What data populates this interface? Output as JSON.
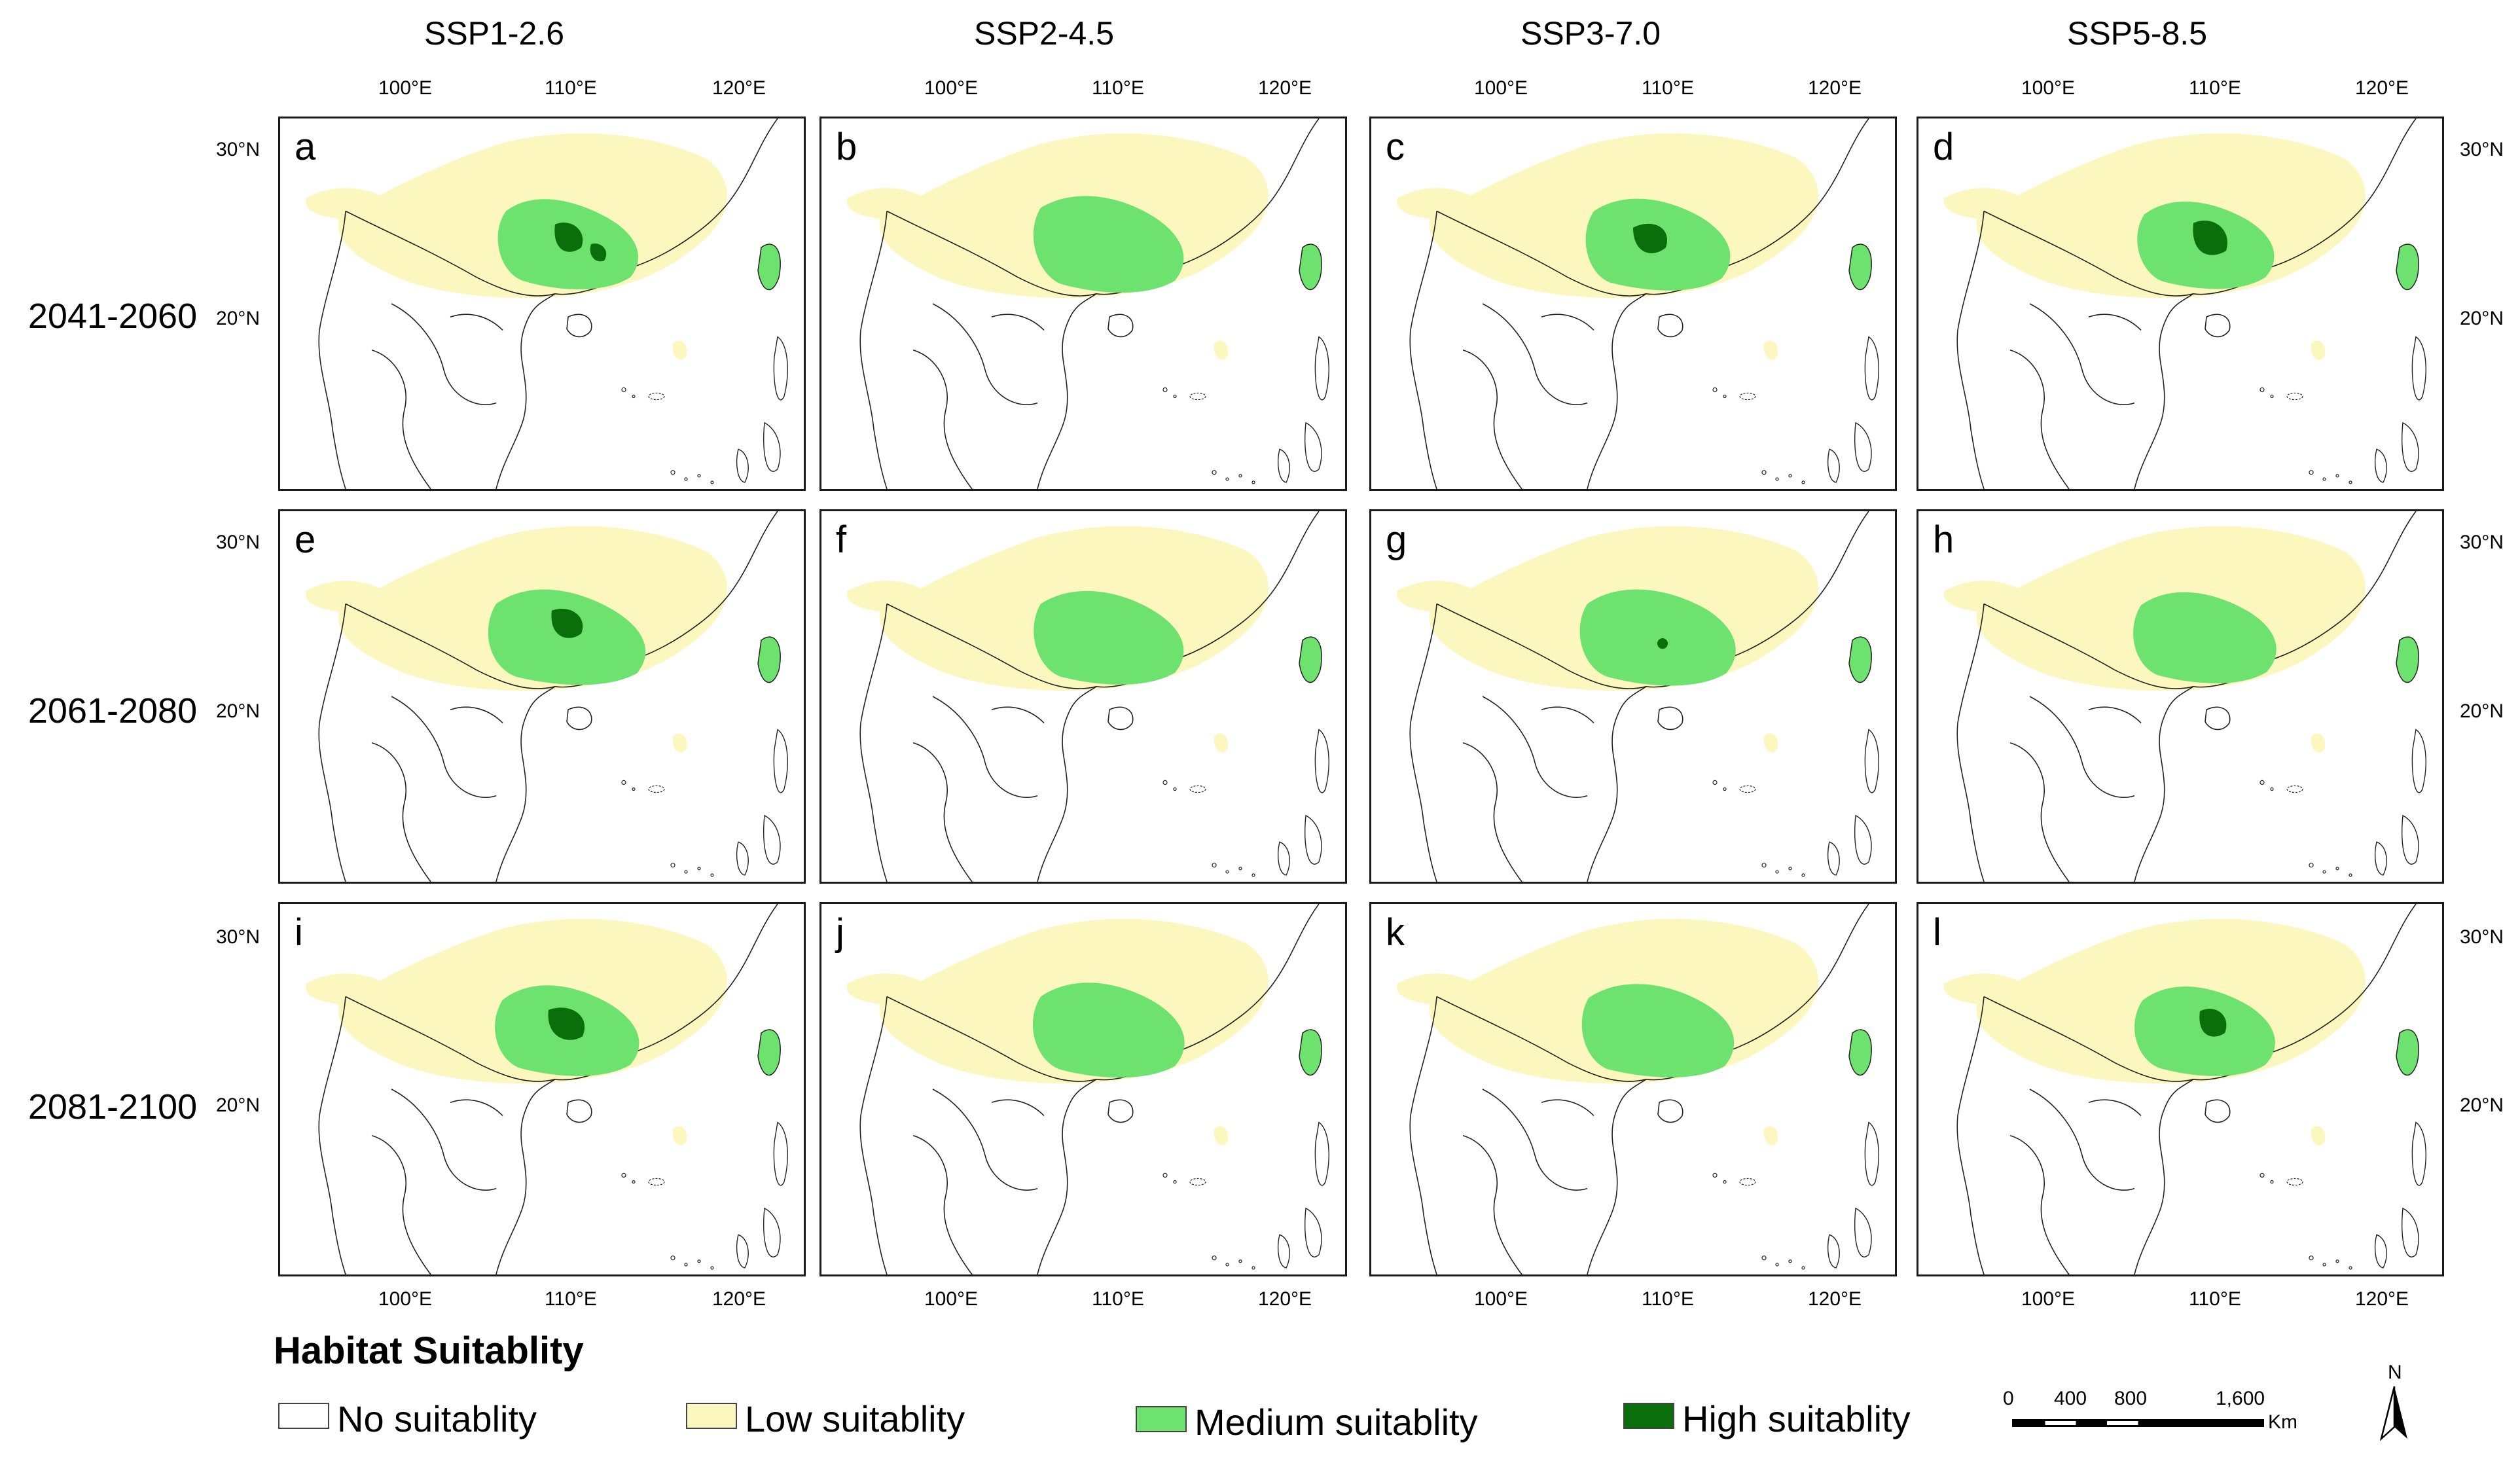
{
  "columns": [
    "SSP1-2.6",
    "SSP2-4.5",
    "SSP3-7.0",
    "SSP5-8.5"
  ],
  "rows": [
    "2041-2060",
    "2061-2080",
    "2081-2100"
  ],
  "panel_letters": [
    "a",
    "b",
    "c",
    "d",
    "e",
    "f",
    "g",
    "h",
    "i",
    "j",
    "k",
    "l"
  ],
  "axis": {
    "lon_labels": [
      "100°E",
      "110°E",
      "120°E"
    ],
    "lat_labels": [
      "30°N",
      "20°N"
    ]
  },
  "legend": {
    "title": "Habitat Suitablity",
    "items": [
      {
        "label": "No suitablity",
        "color": "#ffffff"
      },
      {
        "label": "Low suitablity",
        "color": "#fbf7bf"
      },
      {
        "label": "Medium suitablity",
        "color": "#6ee26e"
      },
      {
        "label": "High suitablity",
        "color": "#0a6e0a"
      }
    ]
  },
  "scale_bar": {
    "labels": [
      "0",
      "400",
      "800",
      "1,600"
    ],
    "unit": "Km"
  },
  "north_arrow": {
    "label": "N"
  }
}
